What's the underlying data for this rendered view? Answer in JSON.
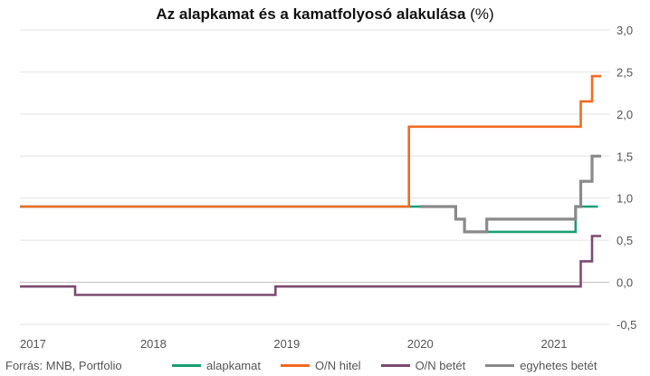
{
  "chart_data": {
    "type": "line",
    "step": true,
    "title": "Az alapkamat és a kamatfolyosó alakulása",
    "title_unit": "(%)",
    "source": "Forrás: MNB, Portfolio",
    "x_ticks": [
      "2017",
      "2018",
      "2019",
      "2020",
      "2021"
    ],
    "xlim": [
      "2017-01-01",
      "2021-06-01"
    ],
    "ylim": [
      -0.5,
      3.0
    ],
    "y_ticks": [
      "3,0",
      "2,5",
      "2,0",
      "1,5",
      "1,0",
      "0,5",
      "0,0",
      "-0,5"
    ],
    "y_axis_side": "right",
    "grid": true,
    "legend_placement": "bottom",
    "series": [
      {
        "name": "alapkamat",
        "color": "#1a9e77",
        "points": [
          [
            "2017-01-01",
            0.9
          ],
          [
            "2020-04-07",
            0.9
          ],
          [
            "2020-04-07",
            0.75
          ],
          [
            "2020-05-01",
            0.75
          ],
          [
            "2020-05-01",
            0.6
          ],
          [
            "2021-03-01",
            0.6
          ],
          [
            "2021-03-01",
            0.9
          ],
          [
            "2021-05-01",
            0.9
          ]
        ]
      },
      {
        "name": "O/N hitel",
        "color": "#f26a21",
        "points": [
          [
            "2017-01-01",
            0.9
          ],
          [
            "2019-12-01",
            0.9
          ],
          [
            "2019-12-01",
            1.85
          ],
          [
            "2021-03-15",
            1.85
          ],
          [
            "2021-03-15",
            2.15
          ],
          [
            "2021-04-15",
            2.15
          ],
          [
            "2021-04-15",
            2.45
          ],
          [
            "2021-05-10",
            2.45
          ]
        ]
      },
      {
        "name": "O/N betét",
        "color": "#7b4b70",
        "points": [
          [
            "2017-01-01",
            -0.05
          ],
          [
            "2017-06-01",
            -0.05
          ],
          [
            "2017-06-01",
            -0.15
          ],
          [
            "2018-12-01",
            -0.15
          ],
          [
            "2018-12-01",
            -0.05
          ],
          [
            "2021-03-15",
            -0.05
          ],
          [
            "2021-03-15",
            0.25
          ],
          [
            "2021-04-15",
            0.25
          ],
          [
            "2021-04-15",
            0.55
          ],
          [
            "2021-05-10",
            0.55
          ]
        ]
      },
      {
        "name": "egyhetes betét",
        "color": "#8a8a8a",
        "points": [
          [
            "2020-01-01",
            0.9
          ],
          [
            "2020-04-07",
            0.9
          ],
          [
            "2020-04-07",
            0.75
          ],
          [
            "2020-05-01",
            0.75
          ],
          [
            "2020-05-01",
            0.6
          ],
          [
            "2020-07-01",
            0.6
          ],
          [
            "2020-07-01",
            0.75
          ],
          [
            "2021-03-01",
            0.75
          ],
          [
            "2021-03-01",
            0.9
          ],
          [
            "2021-03-15",
            0.9
          ],
          [
            "2021-03-15",
            1.2
          ],
          [
            "2021-04-15",
            1.2
          ],
          [
            "2021-04-15",
            1.5
          ],
          [
            "2021-05-10",
            1.5
          ]
        ]
      }
    ]
  }
}
